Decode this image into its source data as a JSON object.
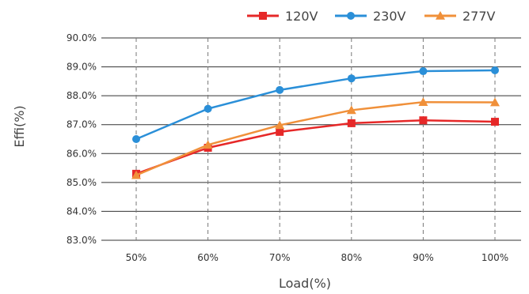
{
  "chart_data": {
    "type": "line",
    "categories": [
      "50%",
      "60%",
      "70%",
      "80%",
      "90%",
      "100%"
    ],
    "xlabel": "Load(%)",
    "ylabel": "Effi(%)",
    "ylim": [
      83.0,
      90.0
    ],
    "yticks": [
      "83.0%",
      "84.0%",
      "85.0%",
      "86.0%",
      "87.0%",
      "88.0%",
      "89.0%",
      "90.0%"
    ],
    "grid": "horizontal solid, vertical dashed",
    "legend_position": "top-right",
    "series": [
      {
        "name": "120V",
        "color": "#e62828",
        "marker": "square",
        "values": [
          85.3,
          86.2,
          86.75,
          87.05,
          87.15,
          87.1
        ]
      },
      {
        "name": "230V",
        "color": "#2a8fd8",
        "marker": "circle",
        "values": [
          86.5,
          87.55,
          88.2,
          88.6,
          88.85,
          88.88
        ]
      },
      {
        "name": "277V",
        "color": "#f0903a",
        "marker": "triangle",
        "values": [
          85.25,
          86.3,
          86.98,
          87.5,
          87.78,
          87.77
        ]
      }
    ]
  }
}
